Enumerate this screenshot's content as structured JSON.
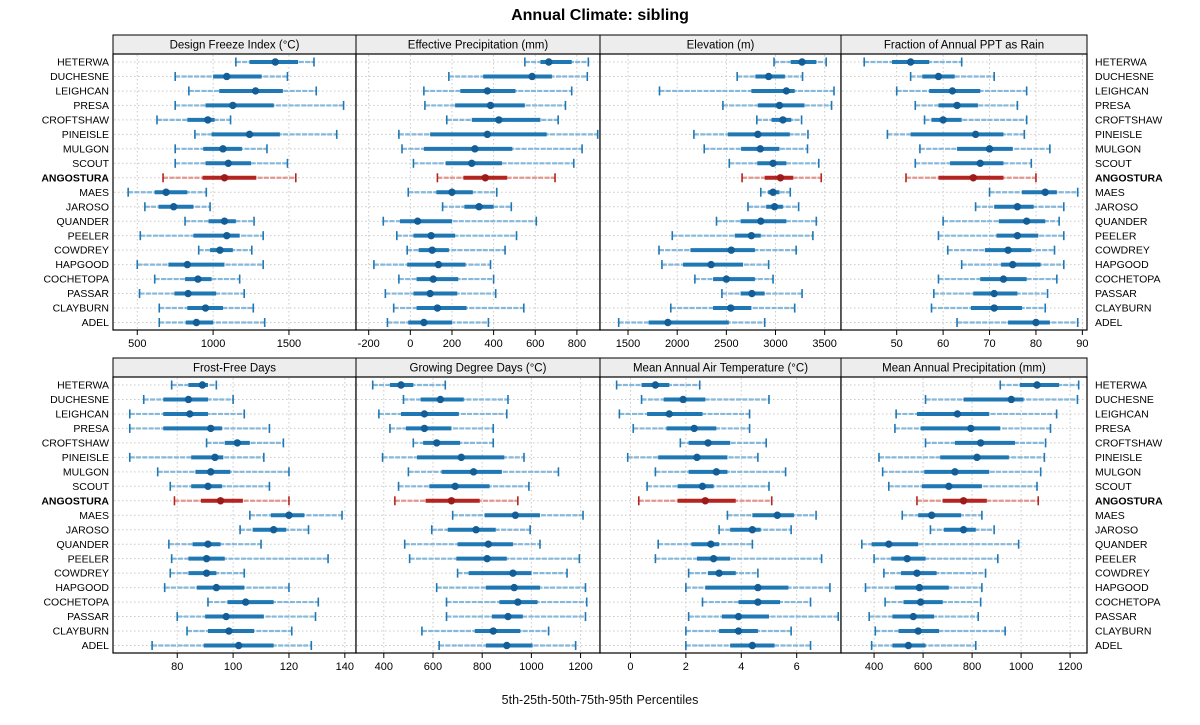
{
  "title": "Annual Climate: sibling",
  "caption": "5th-25th-50th-75th-95th Percentiles",
  "highlight_station": "ANGOSTURA",
  "colors": {
    "blue": "#1f77b4",
    "blue_light": "#85b8da",
    "blue_dot": "#135e96",
    "red": "#b42421",
    "red_light": "#e2968e",
    "red_dot": "#9c1a18",
    "strip_bg": "#ededed",
    "grid": "#c9c9c9",
    "border": "#000000",
    "text": "#000000"
  },
  "stations": [
    "HETERWA",
    "DUCHESNE",
    "LEIGHCAN",
    "PRESA",
    "CROFTSHAW",
    "PINEISLE",
    "MULGON",
    "SCOUT",
    "ANGOSTURA",
    "MAES",
    "JAROSO",
    "QUANDER",
    "PEELER",
    "COWDREY",
    "HAPGOOD",
    "COCHETOPA",
    "PASSAR",
    "CLAYBURN",
    "ADEL"
  ],
  "chart_data": {
    "type": "trellis-dotplot-percentiles",
    "percentiles": [
      5,
      25,
      50,
      75,
      95
    ],
    "grid": "dotted",
    "rows_of_panels": 2,
    "cols_of_panels": 4,
    "panels": [
      {
        "title": "Design Freeze Index (°C)",
        "xlim": [
          340,
          1942
        ],
        "ticks": [
          500,
          1000,
          1500
        ],
        "values": [
          [
            1150,
            1240,
            1410,
            1560,
            1665
          ],
          [
            750,
            1000,
            1090,
            1320,
            1490
          ],
          [
            840,
            1040,
            1280,
            1460,
            1680
          ],
          [
            750,
            950,
            1130,
            1400,
            1860
          ],
          [
            630,
            830,
            965,
            1010,
            1115
          ],
          [
            880,
            990,
            1240,
            1440,
            1815
          ],
          [
            750,
            935,
            1065,
            1190,
            1355
          ],
          [
            750,
            950,
            1100,
            1250,
            1490
          ],
          [
            670,
            930,
            1075,
            1285,
            1545
          ],
          [
            440,
            615,
            690,
            830,
            955
          ],
          [
            550,
            640,
            740,
            870,
            980
          ],
          [
            815,
            970,
            1075,
            1150,
            1270
          ],
          [
            520,
            870,
            1090,
            1175,
            1330
          ],
          [
            905,
            980,
            1045,
            1130,
            1255
          ],
          [
            500,
            705,
            830,
            1075,
            1330
          ],
          [
            615,
            815,
            900,
            990,
            1175
          ],
          [
            515,
            745,
            835,
            1020,
            1205
          ],
          [
            645,
            830,
            950,
            1065,
            1265
          ],
          [
            645,
            820,
            890,
            1000,
            1340
          ]
        ]
      },
      {
        "title": "Effective Precipitation (mm)",
        "xlim": [
          -261,
          911
        ],
        "ticks": [
          -200,
          0,
          200,
          400,
          600,
          800
        ],
        "values": [
          [
            550,
            625,
            665,
            775,
            855
          ],
          [
            185,
            350,
            585,
            680,
            850
          ],
          [
            65,
            240,
            370,
            505,
            775
          ],
          [
            70,
            215,
            385,
            550,
            745
          ],
          [
            175,
            295,
            425,
            625,
            710
          ],
          [
            -55,
            95,
            370,
            655,
            900
          ],
          [
            -40,
            65,
            310,
            490,
            825
          ],
          [
            15,
            170,
            295,
            440,
            785
          ],
          [
            130,
            255,
            360,
            465,
            695
          ],
          [
            -10,
            125,
            200,
            300,
            415
          ],
          [
            155,
            260,
            330,
            400,
            485
          ],
          [
            -130,
            -50,
            35,
            200,
            605
          ],
          [
            -65,
            15,
            100,
            215,
            510
          ],
          [
            -15,
            40,
            105,
            185,
            455
          ],
          [
            -175,
            -15,
            135,
            265,
            385
          ],
          [
            -55,
            30,
            110,
            230,
            400
          ],
          [
            -120,
            15,
            95,
            225,
            410
          ],
          [
            -80,
            30,
            130,
            270,
            545
          ],
          [
            -110,
            -10,
            65,
            200,
            375
          ]
        ]
      },
      {
        "title": "Elevation (m)",
        "xlim": [
          1215,
          3666
        ],
        "ticks": [
          1500,
          2000,
          2500,
          3000,
          3500
        ],
        "values": [
          [
            2985,
            3155,
            3270,
            3415,
            3515
          ],
          [
            2610,
            2795,
            2930,
            3095,
            3275
          ],
          [
            1820,
            2755,
            3110,
            3195,
            3595
          ],
          [
            2465,
            2820,
            3040,
            3295,
            3570
          ],
          [
            2810,
            2960,
            3075,
            3160,
            3265
          ],
          [
            2170,
            2515,
            2820,
            3145,
            3330
          ],
          [
            2275,
            2650,
            2845,
            3040,
            3325
          ],
          [
            2530,
            2815,
            2975,
            3110,
            3440
          ],
          [
            2660,
            2890,
            3050,
            3180,
            3465
          ],
          [
            2850,
            2925,
            2975,
            3040,
            3150
          ],
          [
            2720,
            2905,
            2990,
            3075,
            3235
          ],
          [
            2400,
            2645,
            2850,
            3110,
            3415
          ],
          [
            1950,
            2585,
            2755,
            2850,
            3380
          ],
          [
            1815,
            2135,
            2550,
            2790,
            3210
          ],
          [
            1845,
            2060,
            2345,
            2670,
            2930
          ],
          [
            2180,
            2365,
            2500,
            2790,
            2975
          ],
          [
            2455,
            2645,
            2760,
            2890,
            3270
          ],
          [
            1935,
            2365,
            2545,
            2755,
            3195
          ],
          [
            1405,
            1710,
            1905,
            2525,
            2890
          ]
        ]
      },
      {
        "title": "Fraction of Annual PPT as Rain",
        "xlim": [
          38,
          91
        ],
        "ticks": [
          50,
          60,
          70,
          80,
          90
        ],
        "values": [
          [
            43,
            49,
            53,
            57,
            64
          ],
          [
            53,
            55.5,
            59,
            62.5,
            71
          ],
          [
            50,
            57,
            62,
            68,
            78
          ],
          [
            54,
            59,
            63,
            67.5,
            76
          ],
          [
            56,
            57.5,
            60,
            64,
            78
          ],
          [
            48,
            53,
            67,
            73,
            77.5
          ],
          [
            55,
            63,
            70,
            75,
            83
          ],
          [
            54,
            61.5,
            68,
            73,
            79
          ],
          [
            52,
            59,
            66.5,
            73,
            80
          ],
          [
            70,
            77,
            82,
            84.5,
            89
          ],
          [
            67,
            71,
            76,
            79.5,
            86
          ],
          [
            60,
            72,
            78,
            82,
            85
          ],
          [
            59,
            71.5,
            76,
            80.5,
            86
          ],
          [
            61,
            69,
            74,
            79,
            84
          ],
          [
            64,
            72.5,
            75,
            81,
            86
          ],
          [
            59,
            68,
            73,
            78,
            84.5
          ],
          [
            58,
            66.5,
            71,
            76,
            82.5
          ],
          [
            57.5,
            66,
            71,
            77,
            82
          ],
          [
            63,
            74,
            80,
            83,
            89
          ]
        ]
      },
      {
        "title": "Frost-Free Days",
        "xlim": [
          57,
          144
        ],
        "ticks": [
          80,
          100,
          120,
          140
        ],
        "values": [
          [
            78,
            84,
            89,
            91,
            94
          ],
          [
            68,
            75,
            84,
            91,
            100
          ],
          [
            63,
            75,
            84.5,
            91,
            104
          ],
          [
            63,
            75,
            92,
            96,
            113
          ],
          [
            90.5,
            97,
            101.5,
            106,
            118
          ],
          [
            63,
            85,
            93.5,
            96.5,
            111
          ],
          [
            73,
            86.5,
            92,
            99,
            120
          ],
          [
            77.5,
            85,
            91,
            96,
            113
          ],
          [
            79,
            88.5,
            95.5,
            103.5,
            120
          ],
          [
            106,
            113.5,
            120,
            125.5,
            139
          ],
          [
            102.5,
            107,
            114.5,
            119,
            127
          ],
          [
            77,
            85.5,
            91,
            95.5,
            110
          ],
          [
            78,
            84,
            90.5,
            97,
            134
          ],
          [
            77.5,
            84,
            90.5,
            94,
            104
          ],
          [
            75.5,
            87,
            94,
            104,
            120
          ],
          [
            91,
            98,
            104.5,
            114.5,
            130.5
          ],
          [
            80,
            90,
            97.5,
            111,
            129.5
          ],
          [
            83.5,
            91,
            98.5,
            107.5,
            121
          ],
          [
            71,
            89.5,
            102,
            114.5,
            128
          ]
        ]
      },
      {
        "title": "Growing Degree Days (°C)",
        "xlim": [
          287,
          1279
        ],
        "ticks": [
          400,
          600,
          800,
          1000,
          1200
        ],
        "values": [
          [
            355,
            425,
            470,
            520,
            650
          ],
          [
            480,
            550,
            630,
            725,
            905
          ],
          [
            380,
            470,
            565,
            705,
            900
          ],
          [
            425,
            490,
            565,
            675,
            845
          ],
          [
            520,
            560,
            615,
            710,
            845
          ],
          [
            395,
            535,
            715,
            890,
            970
          ],
          [
            500,
            635,
            765,
            880,
            1110
          ],
          [
            460,
            585,
            690,
            830,
            990
          ],
          [
            445,
            570,
            675,
            790,
            945
          ],
          [
            680,
            810,
            935,
            1035,
            1210
          ],
          [
            595,
            660,
            775,
            855,
            995
          ],
          [
            485,
            700,
            825,
            925,
            1035
          ],
          [
            505,
            695,
            820,
            900,
            1195
          ],
          [
            700,
            745,
            925,
            1000,
            1145
          ],
          [
            615,
            815,
            930,
            1035,
            1220
          ],
          [
            655,
            870,
            945,
            1025,
            1225
          ],
          [
            655,
            840,
            905,
            965,
            1220
          ],
          [
            555,
            770,
            845,
            955,
            1070
          ],
          [
            625,
            815,
            900,
            1005,
            1180
          ]
        ]
      },
      {
        "title": "Mean Annual Air Temperature (°C)",
        "xlim": [
          -1.1,
          7.6
        ],
        "ticks": [
          0,
          2,
          4,
          6
        ],
        "values": [
          [
            -0.5,
            0.4,
            0.9,
            1.4,
            2.5
          ],
          [
            0.4,
            1.2,
            1.9,
            2.7,
            5.0
          ],
          [
            -0.4,
            0.6,
            1.4,
            2.6,
            4.3
          ],
          [
            0.1,
            1.3,
            2.3,
            3.1,
            4.3
          ],
          [
            1.8,
            2.1,
            2.8,
            3.6,
            4.9
          ],
          [
            -0.1,
            1.0,
            2.4,
            3.5,
            4.6
          ],
          [
            0.9,
            2.1,
            3.1,
            3.5,
            5.6
          ],
          [
            0.6,
            1.7,
            2.6,
            3.0,
            5.0
          ],
          [
            0.3,
            1.7,
            2.7,
            3.8,
            5.1
          ],
          [
            3.5,
            4.4,
            5.3,
            5.9,
            6.7
          ],
          [
            3.2,
            3.6,
            4.4,
            4.7,
            5.8
          ],
          [
            1.0,
            2.2,
            2.9,
            3.2,
            4.4
          ],
          [
            0.9,
            2.4,
            3.0,
            3.6,
            6.9
          ],
          [
            2.1,
            2.8,
            3.2,
            3.8,
            4.6
          ],
          [
            2.0,
            2.7,
            4.6,
            5.7,
            7.2
          ],
          [
            2.6,
            3.9,
            4.6,
            5.4,
            6.5
          ],
          [
            2.1,
            3.3,
            3.9,
            5.0,
            7.5
          ],
          [
            2.0,
            3.2,
            3.9,
            4.6,
            5.8
          ],
          [
            2.0,
            3.6,
            4.4,
            5.2,
            6.5
          ]
        ]
      },
      {
        "title": "Mean Annual Precipitation (mm)",
        "xlim": [
          265,
          1269
        ],
        "ticks": [
          400,
          600,
          800,
          1000,
          1200
        ],
        "values": [
          [
            915,
            995,
            1065,
            1155,
            1235
          ],
          [
            610,
            765,
            960,
            1010,
            1230
          ],
          [
            490,
            575,
            740,
            870,
            1145
          ],
          [
            485,
            590,
            795,
            915,
            1120
          ],
          [
            610,
            730,
            835,
            975,
            1100
          ],
          [
            420,
            670,
            820,
            950,
            1095
          ],
          [
            435,
            605,
            730,
            870,
            1080
          ],
          [
            460,
            595,
            705,
            840,
            1065
          ],
          [
            575,
            680,
            765,
            860,
            1070
          ],
          [
            515,
            580,
            635,
            755,
            840
          ],
          [
            630,
            685,
            765,
            815,
            890
          ],
          [
            350,
            390,
            460,
            580,
            990
          ],
          [
            400,
            470,
            535,
            610,
            905
          ],
          [
            440,
            510,
            575,
            655,
            855
          ],
          [
            365,
            485,
            585,
            705,
            840
          ],
          [
            445,
            520,
            590,
            680,
            835
          ],
          [
            380,
            475,
            560,
            645,
            825
          ],
          [
            405,
            500,
            580,
            665,
            935
          ],
          [
            390,
            475,
            540,
            610,
            815
          ]
        ]
      }
    ]
  }
}
